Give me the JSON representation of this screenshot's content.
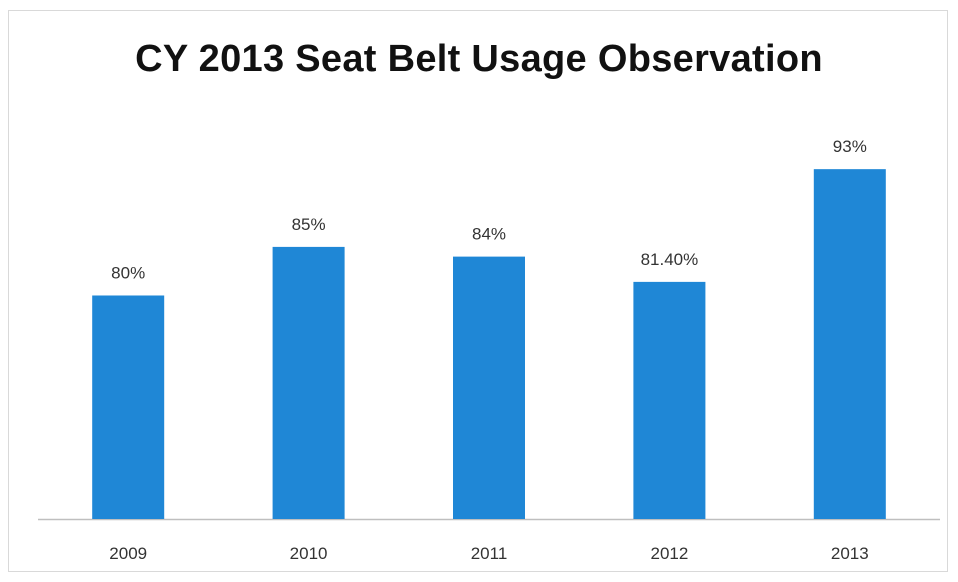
{
  "chart_data": {
    "type": "bar",
    "title": "CY 2013 Seat Belt Usage Observation",
    "xlabel": "",
    "ylabel": "",
    "categories": [
      "2009",
      "2010",
      "2011",
      "2012",
      "2013"
    ],
    "values": [
      80,
      85,
      84,
      81.4,
      93
    ],
    "data_labels": [
      "80%",
      "85%",
      "84%",
      "81.40%",
      "93%"
    ],
    "unit": "%",
    "ylim": [
      57,
      96
    ],
    "grid": false,
    "legend": "none",
    "bar_color": "#1f87d6"
  }
}
